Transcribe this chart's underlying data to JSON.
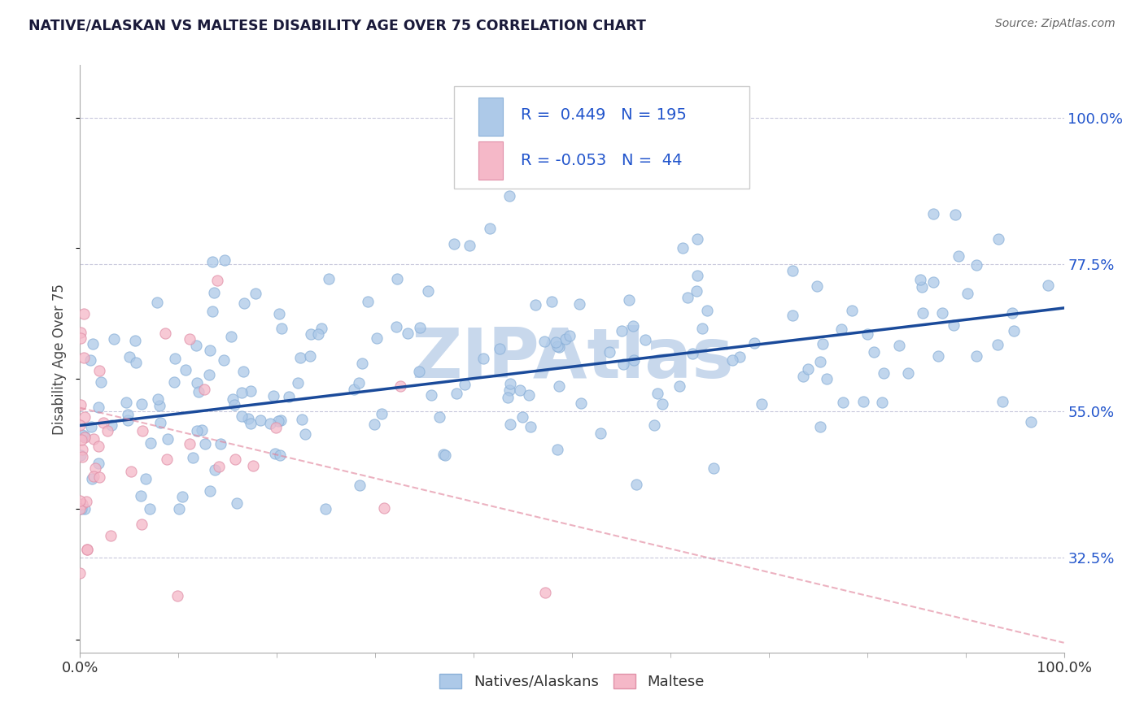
{
  "title": "NATIVE/ALASKAN VS MALTESE DISABILITY AGE OVER 75 CORRELATION CHART",
  "source_text": "Source: ZipAtlas.com",
  "ylabel": "Disability Age Over 75",
  "xlim": [
    0.0,
    1.0
  ],
  "ylim": [
    0.18,
    1.08
  ],
  "yticks": [
    0.325,
    0.55,
    0.775,
    1.0
  ],
  "ytick_labels": [
    "32.5%",
    "55.0%",
    "77.5%",
    "100.0%"
  ],
  "xtick_labels": [
    "0.0%",
    "100.0%"
  ],
  "xticks": [
    0.0,
    1.0
  ],
  "blue_R": 0.449,
  "blue_N": 195,
  "pink_R": -0.053,
  "pink_N": 44,
  "blue_color": "#adc9e8",
  "blue_edge_color": "#8ab0d8",
  "blue_line_color": "#1a4a9a",
  "pink_color": "#f5b8c8",
  "pink_edge_color": "#e090a8",
  "pink_line_color": "#e08098",
  "title_color": "#1a1a3a",
  "source_color": "#666666",
  "grid_color": "#c8c8dc",
  "watermark_color": "#c8d8ec",
  "legend_R_color": "#2255cc",
  "blue_trend_x": [
    0.0,
    1.0
  ],
  "blue_trend_y": [
    0.528,
    0.708
  ],
  "pink_trend_x": [
    0.0,
    1.0
  ],
  "pink_trend_y": [
    0.555,
    0.195
  ],
  "watermark_text": "ZIPAtlas",
  "legend_label_blue": "Natives/Alaskans",
  "legend_label_pink": "Maltese"
}
